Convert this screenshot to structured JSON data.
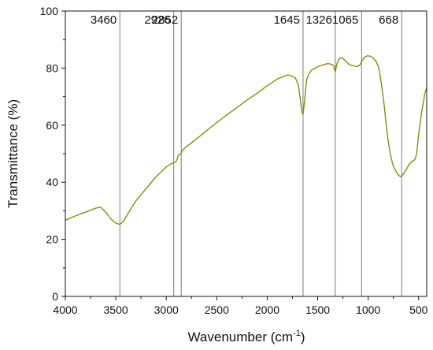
{
  "chart_data": {
    "type": "line",
    "title": "",
    "xlabel": "Wavenumber (cm",
    "xlabel_sup": "-1",
    "xlabel_close": ")",
    "ylabel": "Transmittance (%)",
    "xlim": [
      4000,
      420
    ],
    "ylim": [
      0,
      100
    ],
    "x_reversed": true,
    "xticks": [
      4000,
      3500,
      3000,
      2500,
      2000,
      1500,
      1000,
      500
    ],
    "yticks": [
      0,
      20,
      40,
      60,
      80,
      100
    ],
    "grid": false,
    "legend": "none",
    "colors": {
      "series": "#8a8a12",
      "marker_line": "#7a7a7a",
      "axis": "#111111"
    },
    "series": [
      {
        "x": [
          4000,
          3900,
          3800,
          3700,
          3650,
          3600,
          3550,
          3500,
          3460,
          3420,
          3380,
          3300,
          3200,
          3100,
          3000,
          2950,
          2926,
          2900,
          2880,
          2860,
          2852,
          2840,
          2800,
          2700,
          2600,
          2500,
          2400,
          2300,
          2200,
          2100,
          2000,
          1900,
          1800,
          1760,
          1720,
          1690,
          1670,
          1655,
          1645,
          1630,
          1610,
          1590,
          1560,
          1520,
          1480,
          1440,
          1400,
          1360,
          1340,
          1326,
          1310,
          1290,
          1270,
          1250,
          1220,
          1190,
          1160,
          1130,
          1100,
          1080,
          1065,
          1040,
          1010,
          980,
          950,
          920,
          900,
          880,
          860,
          840,
          820,
          800,
          780,
          760,
          740,
          720,
          700,
          680,
          668,
          650,
          620,
          590,
          560,
          540,
          520,
          500,
          470,
          440,
          420
        ],
        "y": [
          26.7,
          28.2,
          29.5,
          30.9,
          31.3,
          29.5,
          27.2,
          25.7,
          25.2,
          26.5,
          29,
          33.5,
          37.8,
          42,
          45.4,
          46.5,
          46.8,
          47.4,
          49.5,
          49.8,
          50.2,
          51.2,
          52.5,
          55.2,
          58.1,
          60.9,
          63.6,
          66.2,
          68.8,
          71.2,
          73.8,
          76.2,
          77.6,
          77.3,
          76.5,
          73.8,
          68.5,
          64.3,
          63.8,
          68.5,
          75.8,
          77.8,
          79.3,
          80.1,
          80.8,
          81.2,
          81.6,
          81.3,
          80.8,
          78.6,
          81.5,
          83.1,
          83.6,
          83.4,
          82.4,
          81.3,
          80.9,
          80.7,
          80.6,
          81.2,
          82.3,
          83.7,
          84.3,
          84.2,
          83.5,
          82.3,
          80.6,
          77.2,
          72.3,
          66.5,
          59.8,
          54.1,
          49.7,
          46.8,
          44.8,
          43.6,
          42.5,
          42,
          42.1,
          43,
          44.6,
          46.5,
          47.5,
          47.8,
          49.8,
          56.7,
          64.5,
          70.8,
          73.2
        ]
      }
    ],
    "annotations": [
      {
        "x": 3460,
        "label": "3460"
      },
      {
        "x": 2926,
        "label": "2926"
      },
      {
        "x": 2852,
        "label": "2852"
      },
      {
        "x": 1645,
        "label": "1645"
      },
      {
        "x": 1326,
        "label": "1326"
      },
      {
        "x": 1065,
        "label": "1065"
      },
      {
        "x": 668,
        "label": "668"
      }
    ]
  }
}
